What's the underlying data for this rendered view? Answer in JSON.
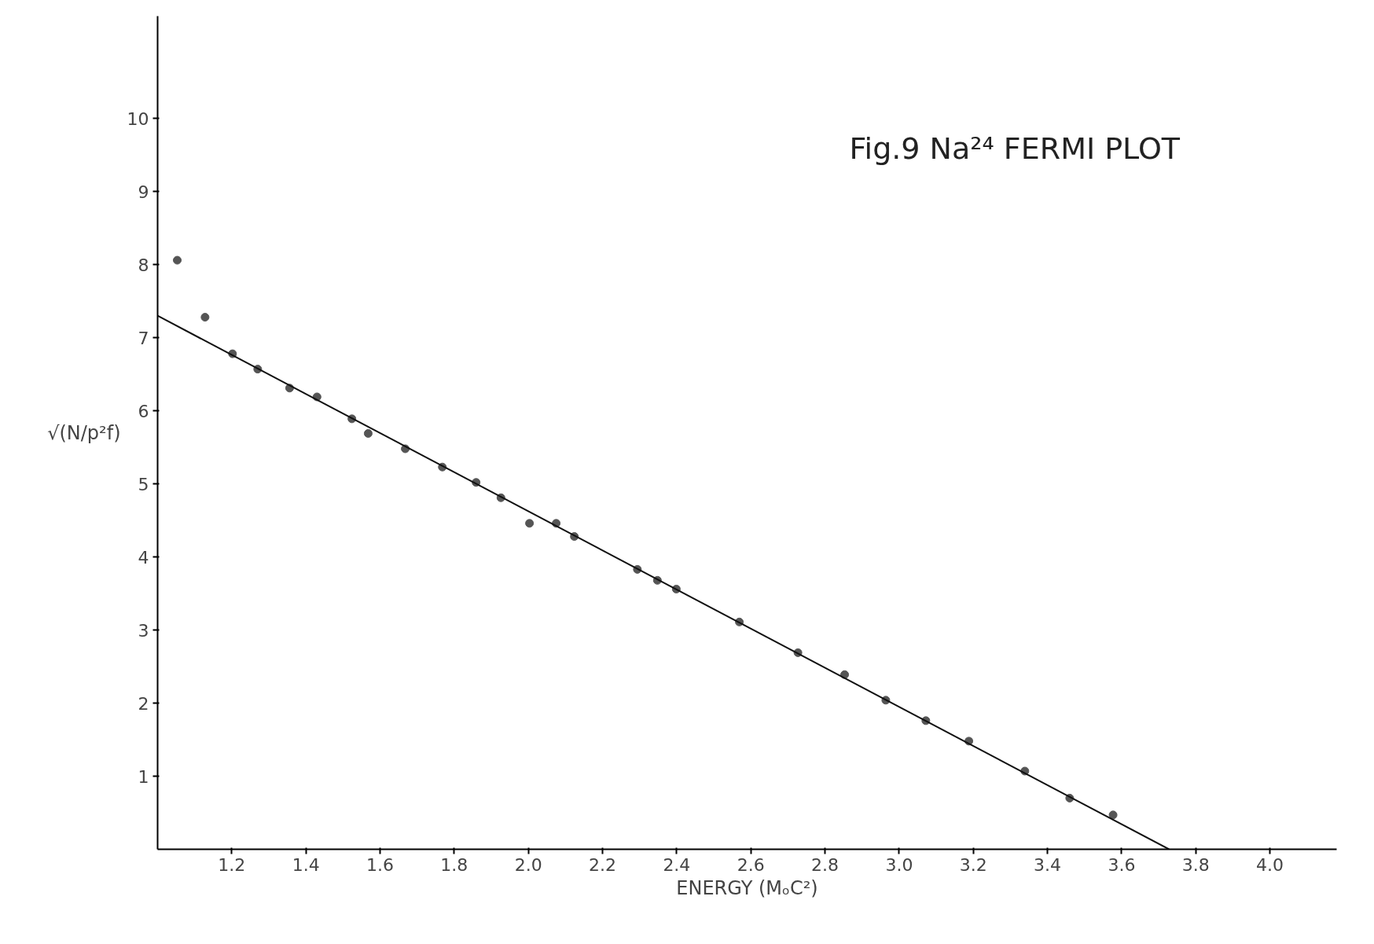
{
  "chart_data": {
    "type": "scatter",
    "title": "Fig.9 Na²⁴ FERMI PLOT",
    "xlabel": "ENERGY (MₒC²)",
    "ylabel": "√(N/p²f)",
    "xlim": [
      1.0,
      4.18
    ],
    "ylim": [
      0,
      11.4
    ],
    "xticks": [
      {
        "value": 1.2,
        "label": "1.2"
      },
      {
        "value": 1.4,
        "label": "1.4"
      },
      {
        "value": 1.6,
        "label": "1.6"
      },
      {
        "value": 1.8,
        "label": "1.8"
      },
      {
        "value": 2.0,
        "label": "2.0"
      },
      {
        "value": 2.2,
        "label": "2.2"
      },
      {
        "value": 2.4,
        "label": "2.4"
      },
      {
        "value": 2.6,
        "label": "2.6"
      },
      {
        "value": 2.8,
        "label": "2.8"
      },
      {
        "value": 3.0,
        "label": "3.0"
      },
      {
        "value": 3.2,
        "label": "3.2"
      },
      {
        "value": 3.4,
        "label": "3.4"
      },
      {
        "value": 3.6,
        "label": "3.6"
      },
      {
        "value": 3.8,
        "label": "3.8"
      },
      {
        "value": 4.0,
        "label": "4.0"
      }
    ],
    "yticks": [
      1,
      2,
      3,
      4,
      5,
      6,
      7,
      8,
      9,
      10
    ],
    "grid": false,
    "series": [
      {
        "marker": "circle",
        "color": "#555555",
        "x": [
          1.053,
          1.128,
          1.202,
          1.27,
          1.356,
          1.43,
          1.524,
          1.568,
          1.668,
          1.768,
          1.859,
          1.926,
          2.003,
          2.075,
          2.124,
          2.294,
          2.348,
          2.399,
          2.569,
          2.727,
          2.853,
          2.964,
          3.072,
          3.188,
          3.339,
          3.46,
          3.577
        ],
        "values": [
          8.06,
          7.28,
          6.78,
          6.57,
          6.31,
          6.19,
          5.89,
          5.69,
          5.48,
          5.23,
          5.02,
          4.81,
          4.46,
          4.46,
          4.28,
          3.83,
          3.68,
          3.56,
          3.11,
          2.69,
          2.39,
          2.04,
          1.76,
          1.48,
          1.07,
          0.7,
          0.47
        ]
      },
      {
        "type": "line",
        "color": "#111111",
        "x": [
          1.0,
          3.728
        ],
        "values": [
          7.3,
          0
        ]
      }
    ]
  }
}
